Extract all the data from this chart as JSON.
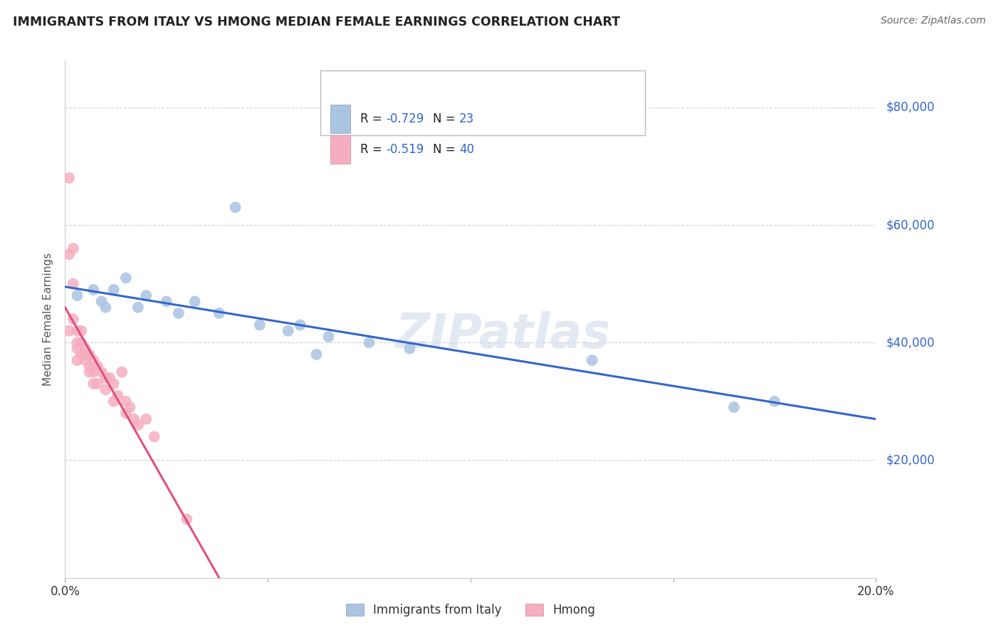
{
  "title": "IMMIGRANTS FROM ITALY VS HMONG MEDIAN FEMALE EARNINGS CORRELATION CHART",
  "source": "Source: ZipAtlas.com",
  "ylabel_label": "Median Female Earnings",
  "xlim": [
    0.0,
    0.2
  ],
  "ylim": [
    0,
    88000
  ],
  "yticks": [
    20000,
    40000,
    60000,
    80000
  ],
  "bg_color": "#ffffff",
  "grid_color": "#d0d0d0",
  "watermark": "ZIPatlas",
  "italy_color": "#aac4e2",
  "italy_line_color": "#3366cc",
  "hmong_color": "#f5aec0",
  "hmong_line_color": "#e05080",
  "italy_R": "-0.729",
  "italy_N": "23",
  "hmong_R": "-0.519",
  "hmong_N": "40",
  "italy_x": [
    0.003,
    0.007,
    0.009,
    0.01,
    0.012,
    0.015,
    0.018,
    0.02,
    0.025,
    0.028,
    0.032,
    0.038,
    0.042,
    0.048,
    0.055,
    0.058,
    0.062,
    0.065,
    0.075,
    0.085,
    0.13,
    0.165,
    0.175
  ],
  "italy_y": [
    48000,
    49000,
    47000,
    46000,
    49000,
    51000,
    46000,
    48000,
    47000,
    45000,
    47000,
    45000,
    63000,
    43000,
    42000,
    43000,
    38000,
    41000,
    40000,
    39000,
    37000,
    29000,
    30000
  ],
  "hmong_x": [
    0.001,
    0.001,
    0.001,
    0.002,
    0.002,
    0.002,
    0.003,
    0.003,
    0.003,
    0.003,
    0.004,
    0.004,
    0.004,
    0.005,
    0.005,
    0.005,
    0.006,
    0.006,
    0.006,
    0.007,
    0.007,
    0.007,
    0.008,
    0.008,
    0.009,
    0.01,
    0.01,
    0.011,
    0.012,
    0.012,
    0.013,
    0.014,
    0.015,
    0.015,
    0.016,
    0.017,
    0.018,
    0.02,
    0.022,
    0.03
  ],
  "hmong_y": [
    68000,
    55000,
    42000,
    56000,
    50000,
    44000,
    42000,
    40000,
    39000,
    37000,
    42000,
    40000,
    38000,
    39000,
    38000,
    37000,
    38000,
    36000,
    35000,
    37000,
    35000,
    33000,
    36000,
    33000,
    35000,
    34000,
    32000,
    34000,
    30000,
    33000,
    31000,
    35000,
    30000,
    28000,
    29000,
    27000,
    26000,
    27000,
    24000,
    10000
  ],
  "italy_trendline_x": [
    0.0,
    0.2
  ],
  "italy_trendline_y": [
    49500,
    27000
  ],
  "hmong_trendline_x": [
    0.0,
    0.038
  ],
  "hmong_trendline_y": [
    46000,
    0
  ]
}
